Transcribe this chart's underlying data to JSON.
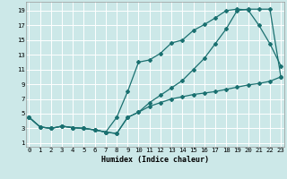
{
  "xlabel": "Humidex (Indice chaleur)",
  "ylabel": "",
  "bg_color": "#cce8e8",
  "grid_color": "#ffffff",
  "line_color": "#1a7070",
  "x_ticks": [
    0,
    1,
    2,
    3,
    4,
    5,
    6,
    7,
    8,
    9,
    10,
    11,
    12,
    13,
    14,
    15,
    16,
    17,
    18,
    19,
    20,
    21,
    22,
    23
  ],
  "y_ticks": [
    1,
    3,
    5,
    7,
    9,
    11,
    13,
    15,
    17,
    19
  ],
  "xlim": [
    -0.3,
    23.3
  ],
  "ylim": [
    0.5,
    20.2
  ],
  "line1_x": [
    0,
    1,
    2,
    3,
    4,
    5,
    6,
    7,
    8,
    9,
    10,
    11,
    12,
    13,
    14,
    15,
    16,
    17,
    18,
    19,
    20,
    21,
    22,
    23
  ],
  "line1_y": [
    4.5,
    3.2,
    3.0,
    3.3,
    3.1,
    3.0,
    2.8,
    2.5,
    2.3,
    4.5,
    5.2,
    6.0,
    6.5,
    7.0,
    7.3,
    7.6,
    7.8,
    8.0,
    8.3,
    8.6,
    8.9,
    9.1,
    9.4,
    10.0
  ],
  "line2_x": [
    0,
    1,
    2,
    3,
    4,
    5,
    6,
    7,
    8,
    9,
    10,
    11,
    12,
    13,
    14,
    15,
    16,
    17,
    18,
    19,
    20,
    21,
    22,
    23
  ],
  "line2_y": [
    4.5,
    3.2,
    3.0,
    3.3,
    3.1,
    3.0,
    2.8,
    2.5,
    4.5,
    8.0,
    12.0,
    12.3,
    13.2,
    14.6,
    15.0,
    16.3,
    17.1,
    18.0,
    19.0,
    19.2,
    19.1,
    17.0,
    14.5,
    11.5
  ],
  "line3_x": [
    0,
    1,
    2,
    3,
    4,
    5,
    6,
    7,
    8,
    9,
    10,
    11,
    12,
    13,
    14,
    15,
    16,
    17,
    18,
    19,
    20,
    21,
    22,
    23
  ],
  "line3_y": [
    4.5,
    3.2,
    3.0,
    3.3,
    3.1,
    3.0,
    2.8,
    2.5,
    2.3,
    4.5,
    5.2,
    6.5,
    7.5,
    8.5,
    9.5,
    11.0,
    12.5,
    14.5,
    16.5,
    19.0,
    19.2,
    19.2,
    19.2,
    10.0
  ],
  "marker_size": 2.0,
  "line_width": 0.9,
  "tick_fontsize": 5.2,
  "xlabel_fontsize": 6.0
}
